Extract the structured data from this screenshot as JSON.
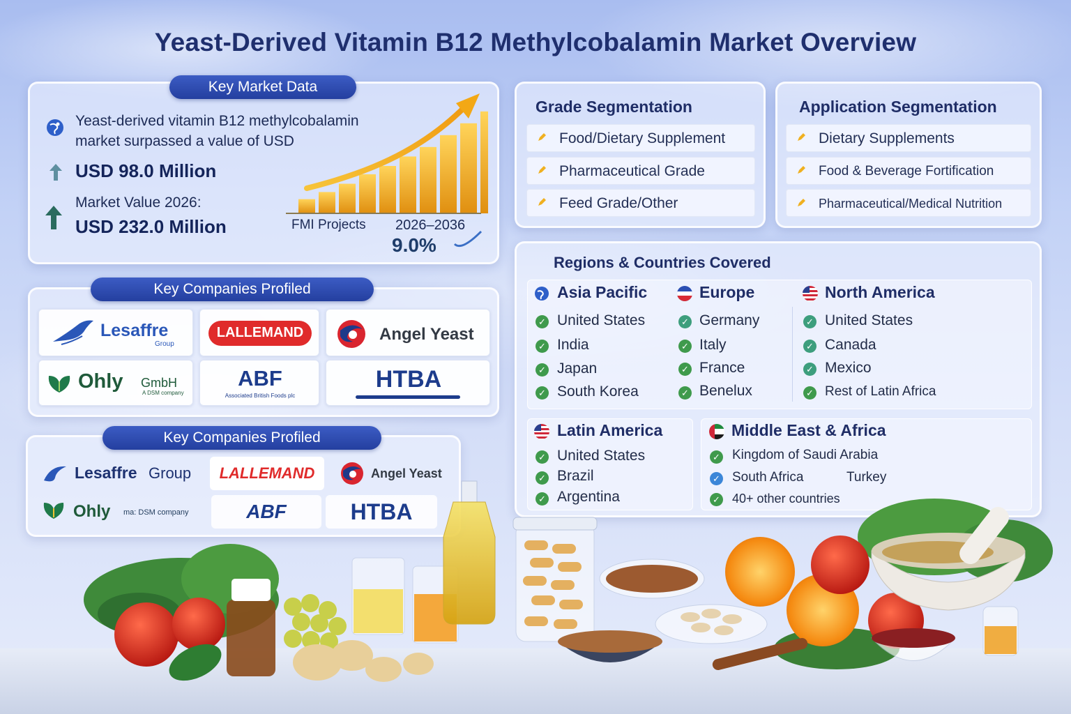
{
  "title": "Yeast-Derived Vitamin B12 Methylcobalamin Market Overview",
  "key_market_data": {
    "header": "Key Market Data",
    "intro_line1": "Yeast-derived vitamin B12 methylcobalamin",
    "intro_line2": "market surpassed a value of USD",
    "value_current": "USD 98.0 Million",
    "value_2026_label": "Market Value 2026:",
    "value_2026": "USD 232.0 Million",
    "fmi_label": "FMI Projects",
    "period": "2026–2036",
    "cagr": "9.0%",
    "bar_levels": [
      0.12,
      0.18,
      0.25,
      0.33,
      0.4,
      0.48,
      0.56,
      0.66,
      0.76,
      0.86
    ]
  },
  "companies_1": {
    "header": "Key Companies Profiled",
    "logos": {
      "lesaffre": "Lesaffre",
      "lesaffre_sub": "Group",
      "lallemand": "LALLEMAND",
      "angel": "Angel Yeast",
      "ohly": "Ohly",
      "ohly_suffix": "GmbH",
      "ohly_sub": "A DSM company",
      "abf": "ABF",
      "abf_sub": "Associated British Foods plc",
      "htba": "HTBA"
    }
  },
  "companies_2": {
    "header": "Key Companies Profiled",
    "logos": {
      "lesaffre": "Lesaffre",
      "lesaffre_suffix": "Group",
      "lallemand": "LALLEMAND",
      "angel": "Angel Yeast",
      "ohly": "Ohly",
      "ohly_sub": "ma: DSM company",
      "abf": "ABF",
      "htba": "HTBA"
    }
  },
  "grade_segmentation": {
    "header": "Grade Segmentation",
    "items": [
      "Food/Dietary Supplement",
      "Pharmaceutical Grade",
      "Feed Grade/Other"
    ]
  },
  "application_segmentation": {
    "header": "Application Segmentation",
    "items": [
      "Dietary Supplements",
      "Food & Beverage Fortification",
      "Pharmaceutical/Medical Nutrition"
    ]
  },
  "regions": {
    "header": "Regions & Countries Covered",
    "asia_pacific": {
      "name": "Asia Pacific",
      "countries": [
        "United States",
        "India",
        "Japan",
        "South Korea"
      ]
    },
    "europe": {
      "name": "Europe",
      "countries": [
        "Germany",
        "Italy",
        "France",
        "Benelux"
      ]
    },
    "north_america": {
      "name": "North America",
      "countries": [
        "United States",
        "Canada",
        "Mexico",
        "Rest of Latin Africa"
      ]
    },
    "latin_america": {
      "name": "Latin America",
      "countries": [
        "United States",
        "Brazil",
        "Argentina"
      ]
    },
    "mea": {
      "name": "Middle East & Africa",
      "countries": [
        "Kingdom of Saudi Arabia",
        "South Africa",
        "Turkey",
        "40+ other countries"
      ]
    }
  },
  "colors": {
    "title": "#1f2f6e",
    "pill": "#2c4ab0",
    "check_green": "#3f9a4c",
    "check_blue": "#3b86d8",
    "bar_gold": "#f2b21c",
    "lallemand_red": "#e02b2b",
    "angel_red": "#d9252f",
    "ohly_green": "#1f7a4a",
    "abf_blue": "#1d3c8c"
  }
}
